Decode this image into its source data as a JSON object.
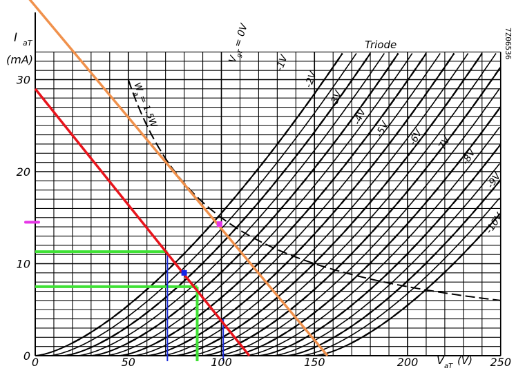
{
  "chart_data": {
    "type": "line",
    "title": "Triode",
    "sheet_code": "7Z06536",
    "ylabel": "I",
    "ylabel_sub": "aT",
    "yunit": "(mA)",
    "xlabel": "V",
    "xlabel_sub": "aT",
    "xunit": "(V)",
    "xlim": [
      0,
      250
    ],
    "ylim": [
      0,
      33
    ],
    "x_ticks": [
      "0",
      "50",
      "100",
      "150",
      "200",
      "250"
    ],
    "y_ticks": [
      "0",
      "10",
      "20",
      "30"
    ],
    "grid": true,
    "dissipation_curve": {
      "label": "W",
      "label_sub": "a",
      "label_value": "= 1.5W",
      "power_w": 1.5
    },
    "curves": [
      {
        "label": "V",
        "label_sub": "gT",
        "label_value": "= 0V",
        "vg": 0,
        "dashed": true
      },
      {
        "label": "-1V",
        "vg": -1,
        "dashed": true
      },
      {
        "label": "-2V",
        "vg": -2,
        "dashed": true
      },
      {
        "label": "-3V",
        "vg": -3,
        "dashed": true
      },
      {
        "label": "-4V",
        "vg": -4,
        "dashed": true
      },
      {
        "label": "-5V",
        "vg": -5,
        "dashed": true
      },
      {
        "label": "-6V",
        "vg": -6,
        "dashed": true
      },
      {
        "label": "-7V",
        "vg": -7,
        "dashed": true
      },
      {
        "label": "-8V",
        "vg": -8,
        "dashed": true
      },
      {
        "label": "-9V",
        "vg": -9,
        "dashed": true
      },
      {
        "label": "-10V",
        "vg": -10,
        "dashed": true
      }
    ],
    "annotations": {
      "red_load_line": {
        "x": [
          0,
          115
        ],
        "y": [
          29,
          0
        ],
        "color": "#e8141c"
      },
      "orange_load_line": {
        "x": [
          0,
          157
        ],
        "y": [
          38,
          0
        ],
        "color": "#f0914c"
      },
      "operating_points": [
        {
          "x": 80,
          "y": 9,
          "color": "#1426e6"
        },
        {
          "x": 99,
          "y": 14.3,
          "color": "#e636e6"
        }
      ],
      "green_swing_levels_ma": [
        11.3,
        7.5
      ],
      "green_swing_voltages_v": [
        71,
        87
      ],
      "blue_markers_v": [
        71,
        101
      ],
      "green_color": "#3fe135",
      "blue_color": "#1c2edb",
      "side_marker": {
        "y": 14.5,
        "color": "#e636e6"
      }
    }
  }
}
